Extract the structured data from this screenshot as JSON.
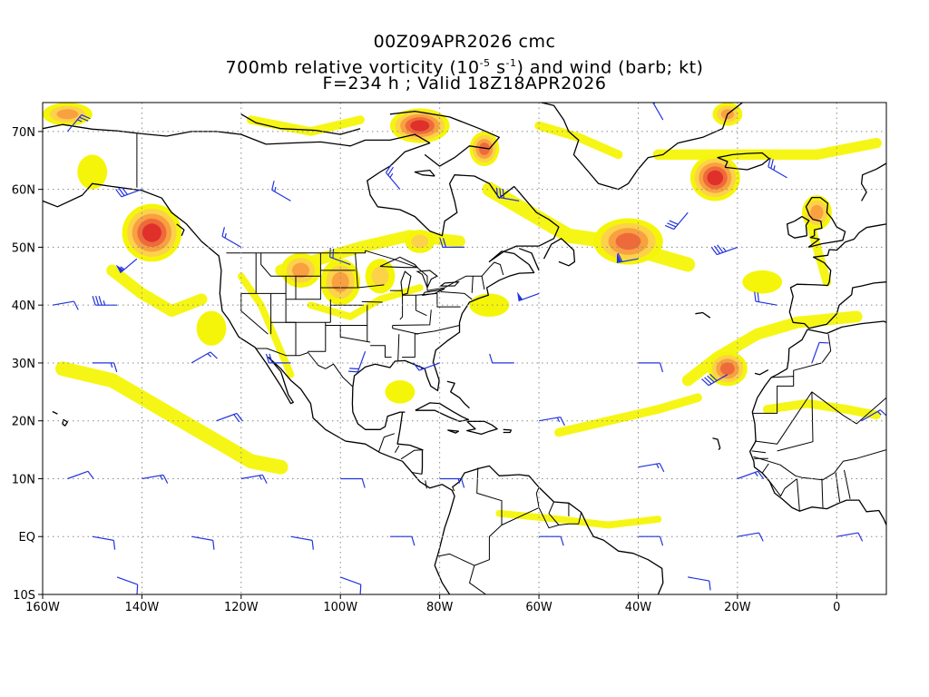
{
  "header": {
    "line1": "00Z09APR2026 cmc",
    "line2_pre": "700mb relative vorticity (10",
    "line2_exp1": "-5",
    "line2_mid": " s",
    "line2_exp2": "-1",
    "line2_post": ") and wind (barb; kt)",
    "line3": "F=234 h ; Valid 18Z18APR2026"
  },
  "map_data": {
    "extent": {
      "lon_min": -160,
      "lon_max": 10,
      "lat_min": -10,
      "lat_max": 75
    },
    "grid": true,
    "lon_ticks": [
      {
        "lon": -160,
        "label": "160W"
      },
      {
        "lon": -140,
        "label": "140W"
      },
      {
        "lon": -120,
        "label": "120W"
      },
      {
        "lon": -100,
        "label": "100W"
      },
      {
        "lon": -80,
        "label": "80W"
      },
      {
        "lon": -60,
        "label": "60W"
      },
      {
        "lon": -40,
        "label": "40W"
      },
      {
        "lon": -20,
        "label": "20W"
      },
      {
        "lon": 0,
        "label": "0"
      }
    ],
    "lat_ticks": [
      {
        "lat": 70,
        "label": "70N"
      },
      {
        "lat": 60,
        "label": "60N"
      },
      {
        "lat": 50,
        "label": "50N"
      },
      {
        "lat": 40,
        "label": "40N"
      },
      {
        "lat": 30,
        "label": "30N"
      },
      {
        "lat": 20,
        "label": "20N"
      },
      {
        "lat": 10,
        "label": "10N"
      },
      {
        "lat": 0,
        "label": "EQ"
      },
      {
        "lat": -10,
        "label": "10S"
      }
    ],
    "colors": {
      "level1": "#f5f50a",
      "level2": "#fcd24a",
      "level3": "#f9a040",
      "level4": "#ef6a3a",
      "level5": "#e0302a",
      "barb": "#2233dd",
      "coast": "#000000",
      "grid": "#888888"
    },
    "vorticity_features": [
      {
        "lon": -138,
        "lat": 52.5,
        "rlon": 6,
        "rlat": 5,
        "max": 5
      },
      {
        "lon": -126,
        "lat": 36,
        "rlon": 3,
        "rlat": 3,
        "max": 1
      },
      {
        "lon": -155,
        "lat": 73,
        "rlon": 5,
        "rlat": 2,
        "max": 3
      },
      {
        "lon": -150,
        "lat": 63,
        "rlon": 3,
        "rlat": 3,
        "max": 1
      },
      {
        "lon": -108,
        "lat": 46,
        "rlon": 4,
        "rlat": 3,
        "max": 3
      },
      {
        "lon": -100,
        "lat": 44,
        "rlon": 4,
        "rlat": 4,
        "max": 3
      },
      {
        "lon": -92,
        "lat": 45,
        "rlon": 3,
        "rlat": 3,
        "max": 2
      },
      {
        "lon": -84,
        "lat": 71,
        "rlon": 6,
        "rlat": 3,
        "max": 5
      },
      {
        "lon": -71,
        "lat": 67,
        "rlon": 3,
        "rlat": 3,
        "max": 4
      },
      {
        "lon": -84,
        "lat": 51,
        "rlon": 3,
        "rlat": 2,
        "max": 2
      },
      {
        "lon": -42,
        "lat": 51,
        "rlon": 7,
        "rlat": 4,
        "max": 4
      },
      {
        "lon": -24.5,
        "lat": 62,
        "rlon": 5,
        "rlat": 4,
        "max": 5
      },
      {
        "lon": -22,
        "lat": 29,
        "rlon": 4,
        "rlat": 3,
        "max": 4
      },
      {
        "lon": -4,
        "lat": 56,
        "rlon": 3,
        "rlat": 3,
        "max": 3
      },
      {
        "lon": -22,
        "lat": 73,
        "rlon": 3,
        "rlat": 2,
        "max": 3
      },
      {
        "lon": -70,
        "lat": 40,
        "rlon": 4,
        "rlat": 2,
        "max": 1
      },
      {
        "lon": -88,
        "lat": 25,
        "rlon": 3,
        "rlat": 2,
        "max": 1
      },
      {
        "lon": -15,
        "lat": 44,
        "rlon": 4,
        "rlat": 2,
        "max": 1
      }
    ],
    "vorticity_bands": [
      {
        "points": [
          [
            -156,
            29
          ],
          [
            -146,
            27
          ],
          [
            -136,
            22
          ],
          [
            -126,
            17
          ],
          [
            -118,
            13
          ],
          [
            -112,
            12
          ]
        ],
        "width": 2.5
      },
      {
        "points": [
          [
            -146,
            46
          ],
          [
            -140,
            42
          ],
          [
            -134,
            39
          ],
          [
            -128,
            41
          ]
        ],
        "width": 2
      },
      {
        "points": [
          [
            -112,
            46
          ],
          [
            -104,
            48
          ],
          [
            -96,
            50
          ],
          [
            -86,
            52
          ],
          [
            -76,
            51
          ]
        ],
        "width": 2
      },
      {
        "points": [
          [
            -70,
            60
          ],
          [
            -62,
            56
          ],
          [
            -54,
            52
          ],
          [
            -46,
            51
          ],
          [
            -38,
            49
          ],
          [
            -30,
            47
          ]
        ],
        "width": 2.5
      },
      {
        "points": [
          [
            -30,
            27
          ],
          [
            -24,
            31
          ],
          [
            -16,
            35
          ],
          [
            -8,
            37
          ],
          [
            4,
            38
          ]
        ],
        "width": 2
      },
      {
        "points": [
          [
            -56,
            18
          ],
          [
            -46,
            20
          ],
          [
            -36,
            22
          ],
          [
            -28,
            24
          ]
        ],
        "width": 1.5
      },
      {
        "points": [
          [
            -36,
            66
          ],
          [
            -26,
            66
          ],
          [
            -14,
            66
          ],
          [
            -4,
            66
          ],
          [
            8,
            68
          ]
        ],
        "width": 1.8
      },
      {
        "points": [
          [
            -118,
            72
          ],
          [
            -106,
            70
          ],
          [
            -96,
            72
          ]
        ],
        "width": 1.5
      },
      {
        "points": [
          [
            -60,
            71
          ],
          [
            -52,
            69
          ],
          [
            -44,
            66
          ]
        ],
        "width": 1.5
      },
      {
        "points": [
          [
            -6,
            56
          ],
          [
            -4,
            50
          ],
          [
            -2,
            44
          ]
        ],
        "width": 1.5
      },
      {
        "points": [
          [
            -14,
            22
          ],
          [
            -6,
            23
          ],
          [
            2,
            22
          ],
          [
            8,
            21
          ]
        ],
        "width": 1.5
      },
      {
        "points": [
          [
            -120,
            45
          ],
          [
            -116,
            40
          ],
          [
            -113,
            34
          ],
          [
            -110,
            28
          ]
        ],
        "width": 1.2
      },
      {
        "points": [
          [
            -106,
            40
          ],
          [
            -98,
            38
          ],
          [
            -92,
            41
          ],
          [
            -84,
            43
          ]
        ],
        "width": 1.2
      },
      {
        "points": [
          [
            -68,
            4
          ],
          [
            -56,
            3
          ],
          [
            -46,
            2
          ],
          [
            -36,
            3
          ]
        ],
        "width": 1.2
      }
    ],
    "wind_barbs": [
      {
        "lon": -155,
        "lat": 70,
        "dir": 40,
        "spd": 25
      },
      {
        "lon": -140,
        "lat": 60,
        "dir": 250,
        "spd": 30
      },
      {
        "lon": -141,
        "lat": 48,
        "dir": 230,
        "spd": 55
      },
      {
        "lon": -145,
        "lat": 40,
        "dir": 270,
        "spd": 35
      },
      {
        "lon": -150,
        "lat": 30,
        "dir": 90,
        "spd": 15
      },
      {
        "lon": -158,
        "lat": 40,
        "dir": 80,
        "spd": 10
      },
      {
        "lon": -130,
        "lat": 30,
        "dir": 60,
        "spd": 15
      },
      {
        "lon": -125,
        "lat": 20,
        "dir": 70,
        "spd": 20
      },
      {
        "lon": -110,
        "lat": 30,
        "dir": 270,
        "spd": 20
      },
      {
        "lon": -95,
        "lat": 32,
        "dir": 200,
        "spd": 20
      },
      {
        "lon": -98,
        "lat": 47,
        "dir": 290,
        "spd": 20
      },
      {
        "lon": -110,
        "lat": 58,
        "dir": 300,
        "spd": 15
      },
      {
        "lon": -88,
        "lat": 60,
        "dir": 320,
        "spd": 25
      },
      {
        "lon": -64,
        "lat": 58,
        "dir": 280,
        "spd": 30
      },
      {
        "lon": -60,
        "lat": 42,
        "dir": 250,
        "spd": 50
      },
      {
        "lon": -40,
        "lat": 48,
        "dir": 260,
        "spd": 60
      },
      {
        "lon": -30,
        "lat": 56,
        "dir": 220,
        "spd": 30
      },
      {
        "lon": -20,
        "lat": 50,
        "dir": 250,
        "spd": 35
      },
      {
        "lon": -12,
        "lat": 40,
        "dir": 280,
        "spd": 20
      },
      {
        "lon": -40,
        "lat": 30,
        "dir": 90,
        "spd": 10
      },
      {
        "lon": -22,
        "lat": 28,
        "dir": 240,
        "spd": 40
      },
      {
        "lon": -60,
        "lat": 20,
        "dir": 80,
        "spd": 15
      },
      {
        "lon": -40,
        "lat": 12,
        "dir": 80,
        "spd": 15
      },
      {
        "lon": -20,
        "lat": 10,
        "dir": 70,
        "spd": 15
      },
      {
        "lon": -80,
        "lat": 10,
        "dir": 90,
        "spd": 15
      },
      {
        "lon": -100,
        "lat": 10,
        "dir": 90,
        "spd": 10
      },
      {
        "lon": -120,
        "lat": 10,
        "dir": 80,
        "spd": 15
      },
      {
        "lon": -140,
        "lat": 10,
        "dir": 80,
        "spd": 15
      },
      {
        "lon": -155,
        "lat": 10,
        "dir": 70,
        "spd": 10
      },
      {
        "lon": -150,
        "lat": 0,
        "dir": 100,
        "spd": 10
      },
      {
        "lon": -130,
        "lat": 0,
        "dir": 100,
        "spd": 10
      },
      {
        "lon": -110,
        "lat": 0,
        "dir": 100,
        "spd": 10
      },
      {
        "lon": -90,
        "lat": 0,
        "dir": 90,
        "spd": 10
      },
      {
        "lon": -60,
        "lat": 0,
        "dir": 90,
        "spd": 10
      },
      {
        "lon": -40,
        "lat": 0,
        "dir": 90,
        "spd": 10
      },
      {
        "lon": -20,
        "lat": 0,
        "dir": 80,
        "spd": 10
      },
      {
        "lon": 0,
        "lat": 0,
        "dir": 80,
        "spd": 10
      },
      {
        "lon": -10,
        "lat": 62,
        "dir": 300,
        "spd": 25
      },
      {
        "lon": -35,
        "lat": 72,
        "dir": 330,
        "spd": 15
      },
      {
        "lon": -75,
        "lat": 50,
        "dir": 270,
        "spd": 20
      },
      {
        "lon": -120,
        "lat": 50,
        "dir": 300,
        "spd": 15
      },
      {
        "lon": -80,
        "lat": 30,
        "dir": 250,
        "spd": 15
      },
      {
        "lon": -65,
        "lat": 30,
        "dir": 270,
        "spd": 10
      },
      {
        "lon": -5,
        "lat": 30,
        "dir": 20,
        "spd": 10
      },
      {
        "lon": 5,
        "lat": 20,
        "dir": 60,
        "spd": 15
      },
      {
        "lon": -145,
        "lat": -7,
        "dir": 110,
        "spd": 10
      },
      {
        "lon": -100,
        "lat": -7,
        "dir": 110,
        "spd": 10
      },
      {
        "lon": -30,
        "lat": -7,
        "dir": 100,
        "spd": 10
      }
    ]
  }
}
